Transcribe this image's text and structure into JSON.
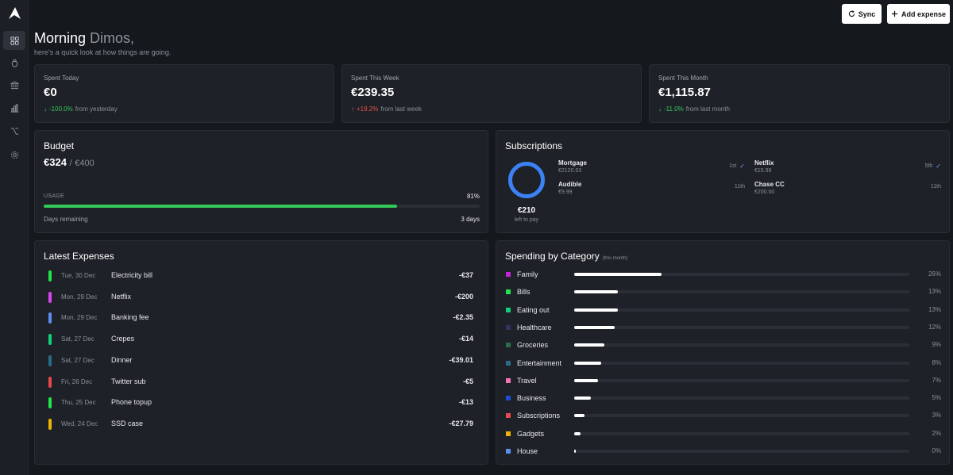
{
  "header": {
    "sync_label": "Sync",
    "add_label": "Add expense"
  },
  "greeting": {
    "hello": "Morning",
    "name": "Dimos,",
    "subtitle": "here's a quick look at how things are going."
  },
  "stats": [
    {
      "label": "Spent Today",
      "value": "€0",
      "direction": "down",
      "change": "-100.0%",
      "suffix": "from yesterday",
      "color": "#34c759"
    },
    {
      "label": "Spent This Week",
      "value": "€239.35",
      "direction": "up",
      "change": "+19.2%",
      "suffix": "from last week",
      "color": "#e5534b"
    },
    {
      "label": "Spent This Month",
      "value": "€1,115.87",
      "direction": "down",
      "change": "-11.0%",
      "suffix": "from last month",
      "color": "#34c759"
    }
  ],
  "budget": {
    "title": "Budget",
    "spent": "€324",
    "separator": "/",
    "total": "€400",
    "usage_label": "USAGE",
    "usage_pct_text": "81%",
    "usage_fraction": 0.81,
    "days_label": "Days remaining",
    "days_value": "3 days",
    "bar_color": "#34c759"
  },
  "subscriptions": {
    "title": "Subscriptions",
    "left_amount": "€210",
    "left_label": "left to pay",
    "ring_color": "#3b82f6",
    "items": [
      {
        "name": "Mortgage",
        "amount": "€2120.53",
        "day": "1st",
        "paid": true
      },
      {
        "name": "Netflix",
        "amount": "€15.99",
        "day": "5th",
        "paid": true
      },
      {
        "name": "Audible",
        "amount": "€9.99",
        "day": "11th",
        "paid": false
      },
      {
        "name": "Chase CC",
        "amount": "€200.00",
        "day": "11th",
        "paid": false
      }
    ]
  },
  "expenses": {
    "title": "Latest Expenses",
    "items": [
      {
        "date": "Tue, 30 Dec",
        "name": "Electricity bill",
        "amount": "-€37",
        "color": "#22e34a"
      },
      {
        "date": "Mon, 29 Dec",
        "name": "Netflix",
        "amount": "-€200",
        "color": "#d946ef"
      },
      {
        "date": "Mon, 29 Dec",
        "name": "Banking fee",
        "amount": "-€2.35",
        "color": "#5b8dee"
      },
      {
        "date": "Sat, 27 Dec",
        "name": "Crepes",
        "amount": "-€14",
        "color": "#10d07a"
      },
      {
        "date": "Sat, 27 Dec",
        "name": "Dinner",
        "amount": "-€39.01",
        "color": "#2b6b8a"
      },
      {
        "date": "Fri, 26 Dec",
        "name": "Twitter sub",
        "amount": "-€5",
        "color": "#e5484d"
      },
      {
        "date": "Thu, 25 Dec",
        "name": "Phone topup",
        "amount": "-€13",
        "color": "#22e34a"
      },
      {
        "date": "Wed, 24 Dec",
        "name": "SSD case",
        "amount": "-€27.79",
        "color": "#eab308"
      }
    ]
  },
  "categories": {
    "title": "Spending by Category",
    "subtitle": "(this month)",
    "items": [
      {
        "name": "Family",
        "pct_text": "26%",
        "pct": 26,
        "color": "#c026d3"
      },
      {
        "name": "Bills",
        "pct_text": "13%",
        "pct": 13,
        "color": "#22e34a"
      },
      {
        "name": "Eating out",
        "pct_text": "13%",
        "pct": 13,
        "color": "#10d07a"
      },
      {
        "name": "Healthcare",
        "pct_text": "12%",
        "pct": 12,
        "color": "#2e3560"
      },
      {
        "name": "Groceries",
        "pct_text": "9%",
        "pct": 9,
        "color": "#2c6e49"
      },
      {
        "name": "Entertainment",
        "pct_text": "8%",
        "pct": 8,
        "color": "#2b6b8a"
      },
      {
        "name": "Travel",
        "pct_text": "7%",
        "pct": 7,
        "color": "#f472b6"
      },
      {
        "name": "Business",
        "pct_text": "5%",
        "pct": 5,
        "color": "#1d4ed8"
      },
      {
        "name": "Subscriptions",
        "pct_text": "3%",
        "pct": 3,
        "color": "#e5484d"
      },
      {
        "name": "Gadgets",
        "pct_text": "2%",
        "pct": 2,
        "color": "#eab308"
      },
      {
        "name": "House",
        "pct_text": "0%",
        "pct": 0,
        "color": "#5b8dee"
      }
    ]
  },
  "nav": [
    "dashboard-icon",
    "piggy-bank-icon",
    "bank-icon",
    "bar-chart-icon",
    "branch-icon",
    "gear-icon"
  ]
}
